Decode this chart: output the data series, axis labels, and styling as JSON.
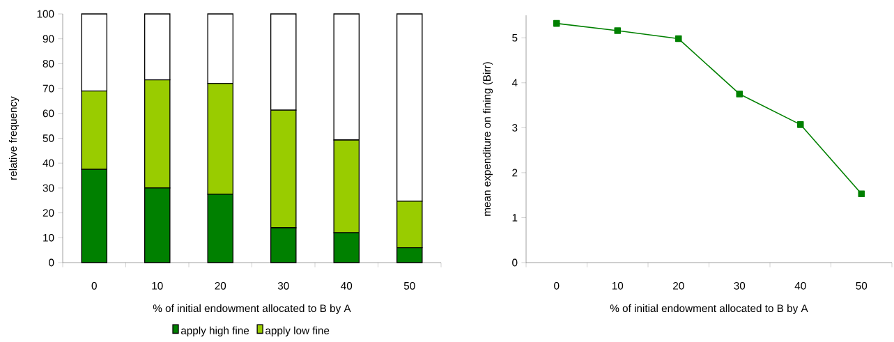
{
  "chart_data": [
    {
      "type": "bar",
      "stacked": true,
      "xlabel": "% of initial endowment allocated to B by A",
      "ylabel": "relative frequency",
      "categories": [
        "0",
        "10",
        "20",
        "30",
        "40",
        "50"
      ],
      "series": [
        {
          "name": "apply high fine",
          "color": "#008000",
          "values": [
            37.5,
            30,
            27.5,
            14,
            12,
            6
          ]
        },
        {
          "name": "apply low fine",
          "color": "#99cc00",
          "values": [
            31.5,
            43.5,
            44.5,
            47.3,
            37.3,
            18.7
          ]
        },
        {
          "color": "#ffffff",
          "values": [
            31,
            26.5,
            28,
            38.7,
            50.7,
            75.3
          ]
        }
      ],
      "ylim": [
        0,
        100
      ],
      "yticks": [
        0,
        10,
        20,
        30,
        40,
        50,
        60,
        70,
        80,
        90,
        100
      ],
      "legend": "bottom"
    },
    {
      "type": "line",
      "xlabel": "% of initial endowment allocated to B by A",
      "ylabel": "mean expenditure on fining (Birr)",
      "categories": [
        "0",
        "10",
        "20",
        "30",
        "40",
        "50"
      ],
      "series": [
        {
          "color": "#008000",
          "values": [
            5.32,
            5.16,
            4.98,
            3.75,
            3.07,
            1.53
          ]
        }
      ],
      "ylim": [
        0,
        5.5
      ],
      "yticks": [
        0,
        1,
        2,
        3,
        4,
        5
      ],
      "marker": "square"
    }
  ]
}
